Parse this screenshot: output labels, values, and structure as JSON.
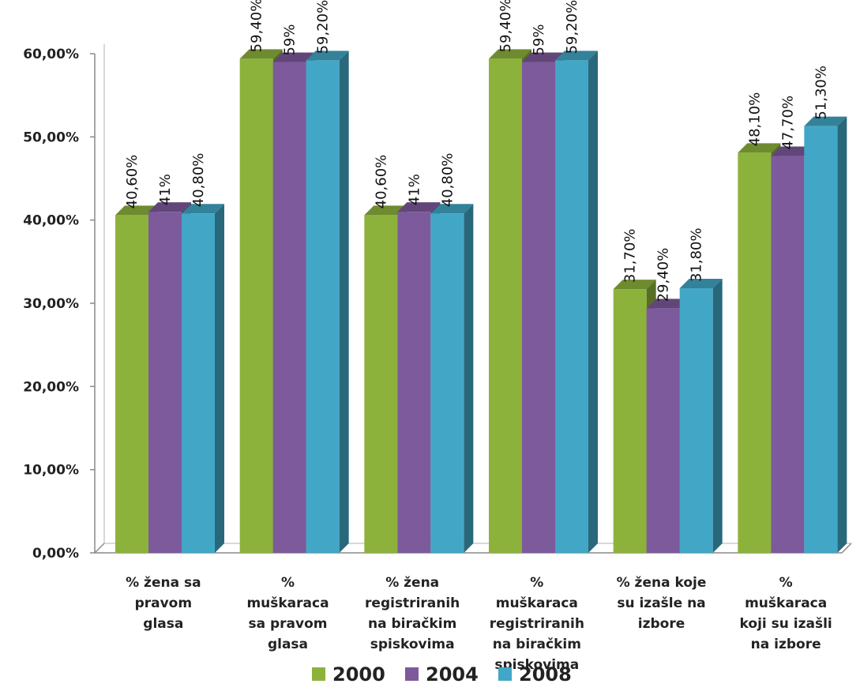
{
  "chart_data": {
    "type": "bar",
    "categories": [
      [
        "% žena sa",
        "pravom",
        "glasa"
      ],
      [
        "%",
        "muškaraca",
        "sa pravom",
        "glasa"
      ],
      [
        "% žena",
        "registriranih",
        "na biračkim",
        "spiskovima"
      ],
      [
        "%",
        "muškaraca",
        "registriranih",
        "na biračkim",
        "spiskovima"
      ],
      [
        "% žena koje",
        "su izašle na",
        "izbore"
      ],
      [
        "%",
        "muškaraca",
        "koji su izašli",
        "na izbore"
      ]
    ],
    "series": [
      {
        "name": "2000",
        "color": "#8db23c",
        "values": [
          40.6,
          59.4,
          40.6,
          59.4,
          31.7,
          48.1
        ],
        "labels": [
          "40,60%",
          "59,40%",
          "40,60%",
          "59,40%",
          "31,70%",
          "48,10%"
        ]
      },
      {
        "name": "2004",
        "color": "#7d5a9b",
        "values": [
          41,
          59,
          41,
          59,
          29.4,
          47.7
        ],
        "labels": [
          "41%",
          "59%",
          "41%",
          "59%",
          "29,40%",
          "47,70%"
        ]
      },
      {
        "name": "2008",
        "color": "#42a7c6",
        "values": [
          40.8,
          59.2,
          40.8,
          59.2,
          31.8,
          51.3
        ],
        "labels": [
          "40,80%",
          "59,20%",
          "40,80%",
          "59,20%",
          "31,80%",
          "51,30%"
        ]
      }
    ],
    "yticks": [
      "0,00%",
      "10,00%",
      "20,00%",
      "30,00%",
      "40,00%",
      "50,00%",
      "60,00%"
    ],
    "ylim": [
      0,
      60
    ],
    "grid": false,
    "legend_position": "bottom",
    "title": "",
    "xlabel": "",
    "ylabel": ""
  }
}
